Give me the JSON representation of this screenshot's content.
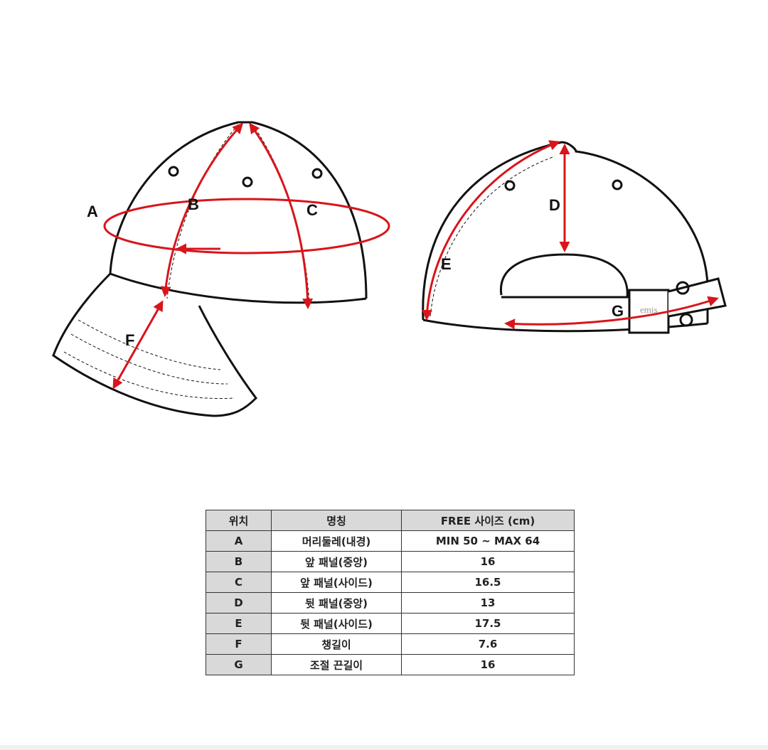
{
  "diagram": {
    "labels": {
      "A": "A",
      "B": "B",
      "C": "C",
      "D": "D",
      "E": "E",
      "F": "F",
      "G": "G"
    },
    "buckle_logo": "emis",
    "arrow_color": "#d9141b"
  },
  "table": {
    "headers": [
      "위치",
      "명칭",
      "FREE 사이즈 (cm)"
    ],
    "rows": [
      {
        "pos": "A",
        "name": "머리둘레(내경)",
        "size": "MIN 50 ~ MAX 64"
      },
      {
        "pos": "B",
        "name": "앞 패널(중앙)",
        "size": "16"
      },
      {
        "pos": "C",
        "name": "앞 패널(사이드)",
        "size": "16.5"
      },
      {
        "pos": "D",
        "name": "뒷 패널(중앙)",
        "size": "13"
      },
      {
        "pos": "E",
        "name": "뒷 패널(사이드)",
        "size": "17.5"
      },
      {
        "pos": "F",
        "name": "챙길이",
        "size": "7.6"
      },
      {
        "pos": "G",
        "name": "조절 끈길이",
        "size": "16"
      }
    ]
  }
}
